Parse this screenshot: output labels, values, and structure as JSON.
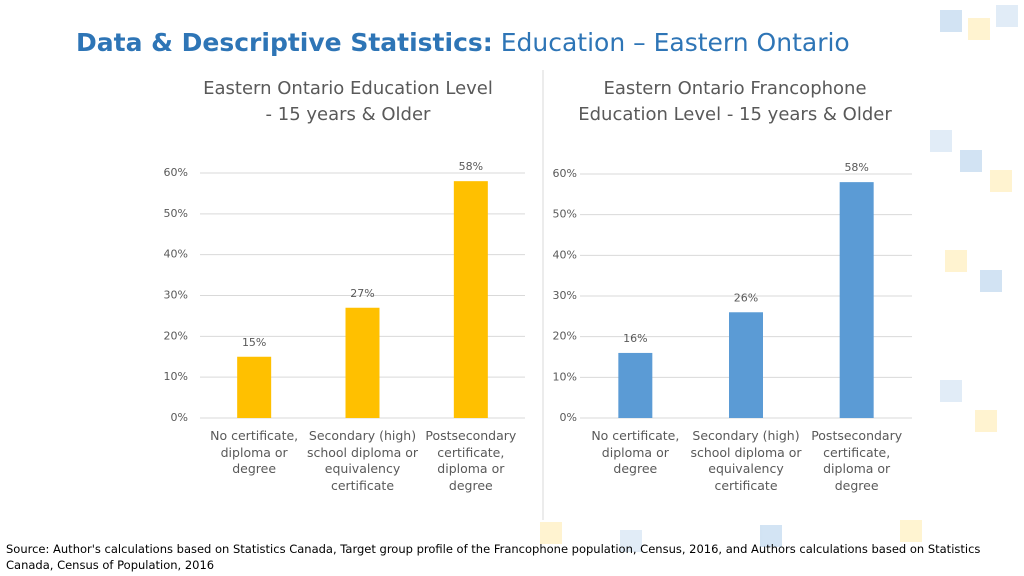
{
  "header": {
    "title_bold": "Data & Descriptive Statistics:",
    "title_rest": "Education – Eastern Ontario"
  },
  "source": "Source: Author's calculations based on Statistics Canada, Target group profile of the Francophone population, Census, 2016, and Authors calculations based on Statistics Canada, Census of Population, 2016",
  "chart_data": [
    {
      "type": "bar",
      "title": "Eastern Ontario Education Level - 15 years & Older",
      "categories": [
        "No certificate, diploma or degree",
        "Secondary (high) school diploma or equivalency certificate",
        "Postsecondary certificate, diploma or degree"
      ],
      "values": [
        15,
        27,
        58
      ],
      "value_labels": [
        "15%",
        "27%",
        "58%"
      ],
      "color": "#ffc000",
      "ylim": [
        0,
        60
      ],
      "yticks": [
        {
          "value": 0,
          "label": "0%"
        },
        {
          "value": 10,
          "label": "10%"
        },
        {
          "value": 20,
          "label": "20%"
        },
        {
          "value": 30,
          "label": "30%"
        },
        {
          "value": 40,
          "label": "40%"
        },
        {
          "value": 50,
          "label": "50%"
        },
        {
          "value": 60,
          "label": "60%"
        }
      ],
      "grid": true
    },
    {
      "type": "bar",
      "title": "Eastern Ontario Francophone Education Level - 15 years & Older",
      "categories": [
        "No certificate, diploma or degree",
        "Secondary (high) school diploma or equivalency certificate",
        "Postsecondary certificate, diploma or degree"
      ],
      "values": [
        16,
        26,
        58
      ],
      "value_labels": [
        "16%",
        "26%",
        "58%"
      ],
      "color": "#5b9bd5",
      "ylim": [
        0,
        60
      ],
      "yticks": [
        {
          "value": 0,
          "label": "0%"
        },
        {
          "value": 10,
          "label": "10%"
        },
        {
          "value": 20,
          "label": "20%"
        },
        {
          "value": 30,
          "label": "30%"
        },
        {
          "value": 40,
          "label": "40%"
        },
        {
          "value": 50,
          "label": "50%"
        },
        {
          "value": 60,
          "label": "60%"
        }
      ],
      "grid": true
    }
  ]
}
